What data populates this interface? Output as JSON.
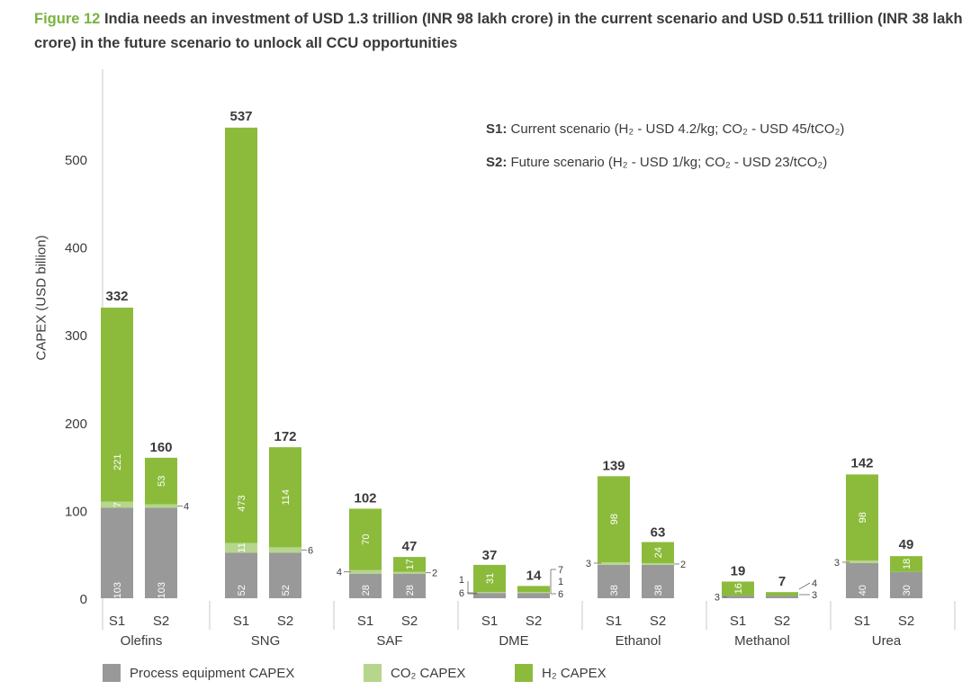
{
  "figure": {
    "label": "Figure 12",
    "title": "India needs an investment of USD 1.3 trillion (INR 98 lakh crore) in the current scenario and USD 0.511 trillion (INR 38 lakh crore) in the future scenario to unlock all CCU opportunities"
  },
  "annotations": {
    "s1_key": "S1:",
    "s1_text": "Current scenario (H₂ - USD 4.2/kg; CO₂ - USD 45/tCO₂)",
    "s2_key": "S2:",
    "s2_text": "Future scenario (H₂ - USD 1/kg; CO₂ - USD 23/tCO₂)"
  },
  "colors": {
    "process": "#999999",
    "co2": "#b5d68c",
    "h2": "#8cbb3c",
    "title_accent": "#7ab340"
  },
  "chart_data": {
    "type": "bar",
    "stacked": true,
    "ylabel": "CAPEX (USD billion)",
    "ylim": [
      0,
      600
    ],
    "yticks": [
      0,
      100,
      200,
      300,
      400,
      500
    ],
    "grid": false,
    "legend_position": "bottom",
    "series": [
      {
        "name": "Process equipment CAPEX",
        "key": "process"
      },
      {
        "name": "CO₂ CAPEX",
        "key": "co2"
      },
      {
        "name": "H₂ CAPEX",
        "key": "h2"
      }
    ],
    "groups": [
      {
        "name": "Olefins",
        "bars": [
          {
            "label": "S1",
            "process": 103,
            "co2": 7,
            "h2": 221,
            "total": 332
          },
          {
            "label": "S2",
            "process": 103,
            "co2": 4,
            "h2": 53,
            "total": 160
          }
        ]
      },
      {
        "name": "SNG",
        "bars": [
          {
            "label": "S1",
            "process": 52,
            "co2": 11,
            "h2": 473,
            "total": 537
          },
          {
            "label": "S2",
            "process": 52,
            "co2": 6,
            "h2": 114,
            "total": 172
          }
        ]
      },
      {
        "name": "SAF",
        "bars": [
          {
            "label": "S1",
            "process": 28,
            "co2": 4,
            "h2": 70,
            "total": 102
          },
          {
            "label": "S2",
            "process": 28,
            "co2": 2,
            "h2": 17,
            "total": 47
          }
        ]
      },
      {
        "name": "DME",
        "bars": [
          {
            "label": "S1",
            "process": 6,
            "co2": 1,
            "h2": 31,
            "total": 37
          },
          {
            "label": "S2",
            "process": 6,
            "co2": 1,
            "h2": 7,
            "total": 14
          }
        ]
      },
      {
        "name": "Ethanol",
        "bars": [
          {
            "label": "S1",
            "process": 38,
            "co2": 3,
            "h2": 98,
            "total": 139
          },
          {
            "label": "S2",
            "process": 38,
            "co2": 2,
            "h2": 24,
            "total": 63
          }
        ]
      },
      {
        "name": "Methanol",
        "bars": [
          {
            "label": "S1",
            "process": 3,
            "co2": 0,
            "h2": 16,
            "total": 19
          },
          {
            "label": "S2",
            "process": 3,
            "co2": 0,
            "h2": 4,
            "total": 7
          }
        ]
      },
      {
        "name": "Urea",
        "bars": [
          {
            "label": "S1",
            "process": 40,
            "co2": 3,
            "h2": 98,
            "total": 142
          },
          {
            "label": "S2",
            "process": 30,
            "co2": 0,
            "h2": 18,
            "total": 49
          }
        ]
      }
    ]
  }
}
